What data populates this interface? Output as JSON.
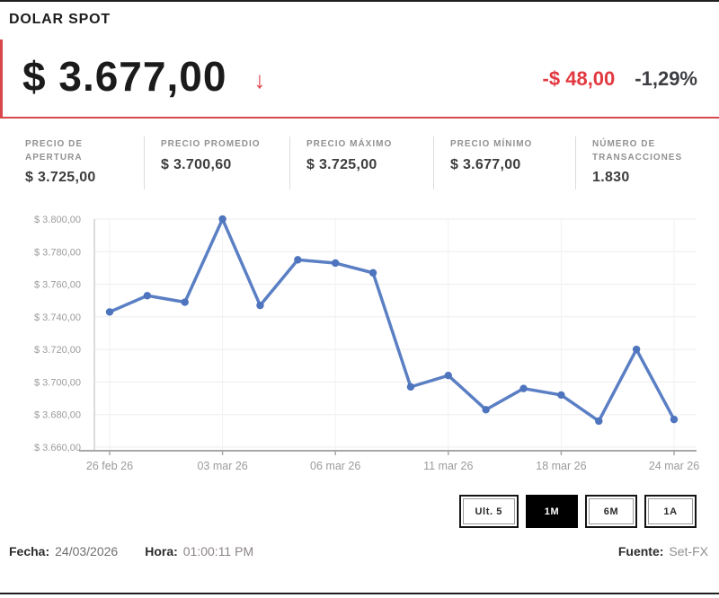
{
  "header": {
    "title": "DOLAR SPOT",
    "price": "$ 3.677,00",
    "trend_arrow": "↓",
    "trend_arrow_icon": "arrow-down-icon",
    "change_value": "-$ 48,00",
    "change_percent": "-1,29%"
  },
  "stats": [
    {
      "label": "PRECIO DE APERTURA",
      "value": "$ 3.725,00"
    },
    {
      "label": "PRECIO PROMEDIO",
      "value": "$ 3.700,60"
    },
    {
      "label": "PRECIO MÁXIMO",
      "value": "$ 3.725,00"
    },
    {
      "label": "PRECIO MÍNIMO",
      "value": "$ 3.677,00"
    },
    {
      "label": "NÚMERO DE TRANSACCIONES",
      "value": "1.830"
    }
  ],
  "chart_data": {
    "type": "line",
    "title": "",
    "xlabel": "",
    "ylabel": "",
    "values": [
      3743,
      3753,
      3749,
      3800,
      3747,
      3775,
      3773,
      3767,
      3697,
      3704,
      3683,
      3696,
      3692,
      3676,
      3720,
      3677
    ],
    "x_tick_indices": [
      0,
      3,
      6,
      9,
      12,
      15
    ],
    "x_tick_labels": [
      "26 feb 26",
      "03 mar 26",
      "06 mar 26",
      "11 mar 26",
      "18 mar 26",
      "24 mar 26"
    ],
    "y_ticks": [
      3660,
      3680,
      3700,
      3720,
      3740,
      3760,
      3780,
      3800
    ],
    "y_tick_labels": [
      "$ 3.660,00",
      "$ 3.680,00",
      "$ 3.700,00",
      "$ 3.720,00",
      "$ 3.740,00",
      "$ 3.760,00",
      "$ 3.780,00",
      "$ 3.800,00"
    ],
    "ylim": [
      3660,
      3800
    ],
    "grid": true,
    "legend": false,
    "line_color": "#5b7fc4",
    "marker_color": "#4d74bd",
    "grid_color": "#ededed",
    "axis_color": "#a8a8a8",
    "tick_label_color": "#9b9b9b"
  },
  "range_buttons": [
    {
      "label": "Ult. 5",
      "selected": false
    },
    {
      "label": "1M",
      "selected": true
    },
    {
      "label": "6M",
      "selected": false
    },
    {
      "label": "1A",
      "selected": false
    }
  ],
  "footer": {
    "date_label": "Fecha:",
    "date_value": "24/03/2026",
    "time_label": "Hora:",
    "time_value": "01:00:11 PM",
    "source_label": "Fuente:",
    "source_value": "Set-FX"
  },
  "colors": {
    "accent_red": "#e23940",
    "border_red": "#d8474c",
    "selected_button_bg": "#000000",
    "text_dark": "#1b1b1b"
  }
}
